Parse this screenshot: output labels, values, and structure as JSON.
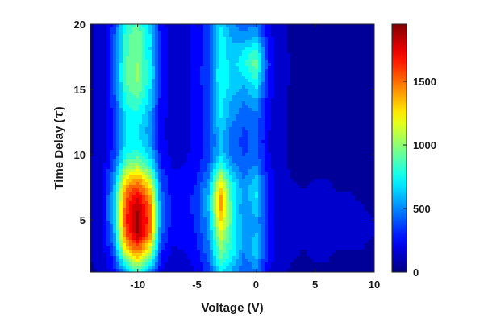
{
  "chart_data": {
    "type": "heatmap",
    "xlabel": "Voltage (V)",
    "ylabel_prefix": "Time Delay (",
    "ylabel_symbol": "τ",
    "ylabel_suffix": ")",
    "xlim": [
      -14,
      10
    ],
    "ylim": [
      1,
      20
    ],
    "x_ticks": [
      -10,
      -5,
      0,
      5,
      10
    ],
    "y_ticks": [
      5,
      10,
      15,
      20
    ],
    "colorbar": {
      "min": 0,
      "max": 1950,
      "ticks": [
        0,
        500,
        1000,
        1500
      ],
      "colormap": "jet"
    },
    "x": [
      -14,
      -13,
      -12,
      -11,
      -10,
      -9,
      -8,
      -7,
      -6,
      -5,
      -4,
      -3,
      -2,
      -1,
      0,
      1,
      2,
      3,
      4,
      5,
      6,
      7,
      8,
      9,
      10
    ],
    "y": [
      1,
      2,
      3,
      4,
      5,
      6,
      7,
      8,
      9,
      10,
      11,
      12,
      13,
      14,
      15,
      16,
      17,
      18,
      19,
      20
    ],
    "z": [
      [
        80,
        110,
        250,
        560,
        820,
        560,
        180,
        130,
        150,
        200,
        330,
        700,
        550,
        380,
        460,
        200,
        110,
        90,
        80,
        90,
        90,
        80,
        80,
        80,
        80
      ],
      [
        100,
        130,
        320,
        950,
        1250,
        900,
        250,
        160,
        180,
        230,
        430,
        900,
        700,
        450,
        600,
        260,
        120,
        100,
        90,
        100,
        100,
        90,
        90,
        90,
        90
      ],
      [
        100,
        150,
        450,
        1350,
        1600,
        1250,
        350,
        190,
        210,
        280,
        480,
        1000,
        780,
        520,
        650,
        300,
        140,
        110,
        100,
        110,
        100,
        100,
        100,
        100,
        90
      ],
      [
        110,
        170,
        550,
        1550,
        1900,
        1550,
        420,
        220,
        240,
        300,
        520,
        1150,
        800,
        500,
        600,
        280,
        130,
        110,
        100,
        110,
        110,
        100,
        100,
        100,
        100
      ],
      [
        110,
        180,
        600,
        1650,
        1900,
        1600,
        450,
        230,
        240,
        320,
        560,
        1300,
        820,
        480,
        580,
        270,
        120,
        100,
        100,
        100,
        100,
        100,
        100,
        100,
        100
      ],
      [
        110,
        180,
        620,
        1600,
        1850,
        1550,
        460,
        240,
        260,
        330,
        620,
        1450,
        800,
        480,
        650,
        280,
        130,
        110,
        100,
        100,
        110,
        100,
        100,
        100,
        90
      ],
      [
        110,
        180,
        600,
        1500,
        1700,
        1400,
        430,
        230,
        250,
        320,
        600,
        1400,
        780,
        520,
        720,
        300,
        140,
        110,
        100,
        110,
        100,
        100,
        100,
        90,
        90
      ],
      [
        100,
        160,
        520,
        1300,
        1450,
        1150,
        380,
        210,
        230,
        290,
        520,
        1200,
        700,
        500,
        640,
        280,
        130,
        100,
        90,
        100,
        100,
        90,
        90,
        90,
        80
      ],
      [
        100,
        140,
        420,
        1000,
        1100,
        850,
        300,
        190,
        200,
        250,
        420,
        850,
        550,
        420,
        520,
        240,
        120,
        90,
        90,
        90,
        90,
        90,
        90,
        80,
        80
      ],
      [
        90,
        130,
        350,
        780,
        820,
        650,
        240,
        170,
        180,
        230,
        360,
        650,
        450,
        380,
        440,
        210,
        110,
        90,
        80,
        90,
        90,
        80,
        80,
        80,
        80
      ],
      [
        90,
        120,
        320,
        700,
        720,
        560,
        220,
        160,
        170,
        220,
        340,
        620,
        430,
        360,
        420,
        200,
        110,
        90,
        80,
        90,
        90,
        80,
        80,
        80,
        80
      ],
      [
        90,
        120,
        310,
        680,
        700,
        540,
        210,
        160,
        170,
        220,
        340,
        650,
        460,
        380,
        440,
        210,
        110,
        90,
        80,
        90,
        90,
        80,
        80,
        80,
        80
      ],
      [
        90,
        120,
        330,
        720,
        760,
        580,
        220,
        160,
        170,
        230,
        360,
        700,
        520,
        420,
        480,
        220,
        110,
        90,
        80,
        90,
        90,
        80,
        80,
        80,
        80
      ],
      [
        90,
        120,
        350,
        780,
        850,
        640,
        230,
        160,
        170,
        230,
        370,
        720,
        560,
        480,
        560,
        240,
        120,
        90,
        80,
        90,
        90,
        80,
        80,
        80,
        80
      ],
      [
        90,
        120,
        380,
        850,
        950,
        700,
        240,
        160,
        170,
        230,
        380,
        760,
        620,
        560,
        680,
        270,
        120,
        90,
        80,
        90,
        90,
        90,
        80,
        80,
        80
      ],
      [
        90,
        120,
        400,
        900,
        1000,
        760,
        250,
        160,
        170,
        230,
        390,
        780,
        660,
        680,
        840,
        300,
        130,
        90,
        80,
        90,
        90,
        90,
        80,
        80,
        80
      ],
      [
        90,
        120,
        400,
        880,
        980,
        740,
        240,
        160,
        170,
        230,
        380,
        760,
        640,
        760,
        940,
        320,
        130,
        90,
        80,
        90,
        90,
        90,
        80,
        80,
        80
      ],
      [
        90,
        120,
        390,
        850,
        940,
        700,
        240,
        160,
        170,
        230,
        380,
        740,
        620,
        680,
        820,
        290,
        120,
        90,
        80,
        90,
        90,
        80,
        80,
        80,
        80
      ],
      [
        90,
        120,
        380,
        860,
        980,
        720,
        240,
        160,
        170,
        230,
        380,
        740,
        560,
        520,
        600,
        250,
        120,
        90,
        80,
        90,
        90,
        80,
        80,
        80,
        80
      ],
      [
        90,
        110,
        330,
        760,
        880,
        640,
        220,
        150,
        160,
        220,
        350,
        680,
        500,
        440,
        480,
        220,
        110,
        90,
        80,
        90,
        90,
        80,
        80,
        80,
        80
      ]
    ]
  }
}
